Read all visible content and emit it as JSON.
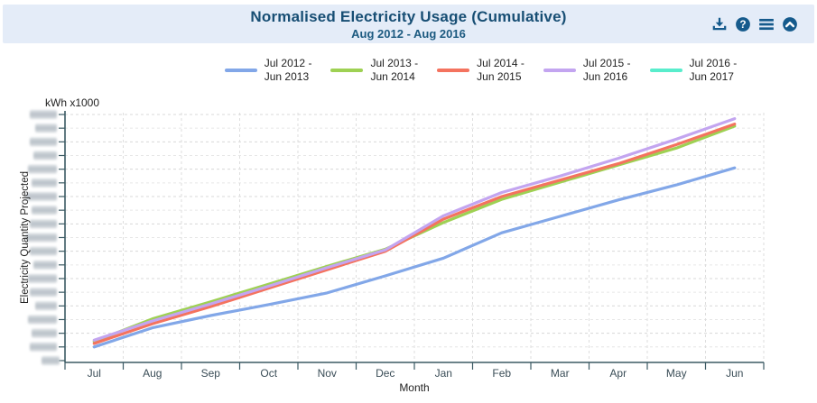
{
  "header": {
    "title": "Normalised Electricity Usage (Cumulative)",
    "subtitle": "Aug 2012 - Aug 2016",
    "icons": [
      "download-icon",
      "help-icon",
      "menu-icon",
      "collapse-icon"
    ],
    "icon_color": "#155a8c",
    "background": "#e4ecf8",
    "title_color": "#174e74"
  },
  "chart_data": {
    "type": "line",
    "title": "Normalised Electricity Usage (Cumulative)",
    "subtitle": "Aug 2012 - Aug 2016",
    "xlabel": "Month",
    "ylabel": "Electricity Quantity Projected",
    "y_unit_label": "kWh x1000",
    "categories": [
      "Jul",
      "Aug",
      "Sep",
      "Oct",
      "Nov",
      "Dec",
      "Jan",
      "Feb",
      "Mar",
      "Apr",
      "May",
      "Jun"
    ],
    "y_axis": {
      "tick_count": 19,
      "tick_labels": "blurred / redacted in source image",
      "values_unit": "relative grid units (one unit per horizontal gridline; numeric labels are blurred in the screenshot)"
    },
    "grid": true,
    "legend_position": "top",
    "series": [
      {
        "name": "Jul 2012 - Jun 2013",
        "legend_line1": "Jul 2012 -",
        "legend_line2": "Jun 2013",
        "color": "#82a7e8",
        "values": [
          1.0,
          2.4,
          3.3,
          4.1,
          4.95,
          6.2,
          7.5,
          9.35,
          10.55,
          11.75,
          12.85,
          14.1
        ]
      },
      {
        "name": "Jul 2013 - Jun 2014",
        "legend_line1": "Jul 2013 -",
        "legend_line2": "Jun 2014",
        "color": "#9ed153",
        "values": [
          1.4,
          3.05,
          4.3,
          5.6,
          6.9,
          8.15,
          10.1,
          11.8,
          13.05,
          14.3,
          15.55,
          17.15
        ]
      },
      {
        "name": "Jul 2014 - Jun 2015",
        "legend_line1": "Jul 2014 -",
        "legend_line2": "Jun 2015",
        "color": "#f4735f",
        "values": [
          1.25,
          2.7,
          3.95,
          5.3,
          6.65,
          8.0,
          10.35,
          12.0,
          13.2,
          14.4,
          15.8,
          17.3
        ]
      },
      {
        "name": "Jul 2015 - Jun 2016",
        "legend_line1": "Jul 2015 -",
        "legend_line2": "Jun 2016",
        "color": "#c3a5f0",
        "values": [
          1.5,
          2.9,
          4.15,
          5.45,
          6.8,
          8.1,
          10.6,
          12.3,
          13.5,
          14.8,
          16.2,
          17.7
        ]
      },
      {
        "name": "Jul 2016 - Jun 2017",
        "legend_line1": "Jul 2016 -",
        "legend_line2": "Jun 2017",
        "color": "#59edcc",
        "values": [],
        "note": "shown in legend only; no visible line in plot"
      }
    ],
    "axis_color": "#3b5a63",
    "tick_label_color": "#3a4d57"
  }
}
